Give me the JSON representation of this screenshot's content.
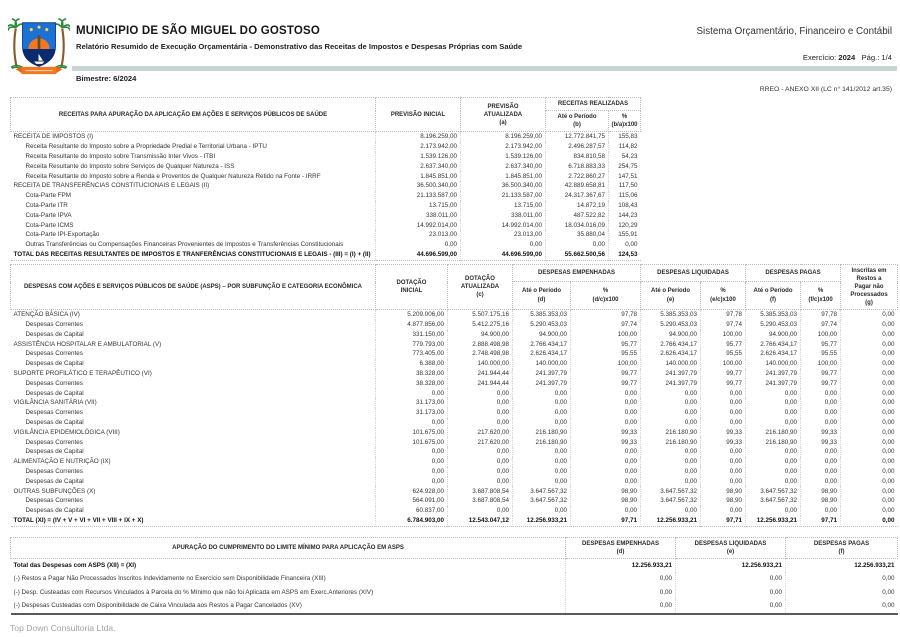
{
  "header": {
    "municipality": "MUNICIPIO DE SÃO MIGUEL DO GOSTOSO",
    "report_title": "Relatório Resumido de Execução Orçamentária - Demonstrativo das Receitas de Impostos e Despesas Próprias com Saúde",
    "system_name": "Sistema Orçamentário, Financeiro e Contábil",
    "exercise_label": "Exercício:",
    "exercise_value": "2024",
    "page_label": "Pág.: 1/4",
    "bimester": "Bimestre: 6/2024",
    "annex_reference": "RREO - ANEXO XII (LC n° 141/2012 art.35)"
  },
  "colors": {
    "divider_bar": "#c6d4d4",
    "shield_blue": "#1b72d3",
    "sea_navy": "#0c2a6e",
    "sun_orange": "#f07820",
    "palm_green": "#2e8b3a",
    "footer_text": "#a3a3a3"
  },
  "receitas_table": {
    "headers": {
      "desc": "RECEITAS PARA APURAÇÃO DA APLICAÇÃO EM AÇÕES E SERVIÇOS PÚBLICOS DE SAÚDE",
      "previsao_inicial": "PREVISÃO INICIAL",
      "previsao_atualizada": "PREVISÃO\nATUALIZADA\n(a)",
      "group_realizadas": "RECEITAS REALIZADAS",
      "ate_periodo": "Até o Período\n(b)",
      "pct": "%\n(b/a)x100"
    },
    "rows": [
      {
        "label": "RECEITA DE IMPOSTOS (I)",
        "style": "section",
        "values": [
          "8.196.259,00",
          "8.196.259,00",
          "12.772.841,75",
          "155,83"
        ]
      },
      {
        "label": "Receita Resultante do Imposto sobre a Propriedade Predial e Territorial Urbana - IPTU",
        "style": "sub",
        "values": [
          "2.173.942,00",
          "2.173.942,00",
          "2.496.287,57",
          "114,82"
        ]
      },
      {
        "label": "Receita Resultante do Imposto sobre Transmissão Inter Vivos - ITBI",
        "style": "sub",
        "values": [
          "1.539.126,00",
          "1.539.126,00",
          "834.810,58",
          "54,23"
        ]
      },
      {
        "label": "Receita Resultante do Imposto sobre Serviços de Qualquer Natureza - ISS",
        "style": "sub",
        "values": [
          "2.637.340,00",
          "2.637.340,00",
          "6.718.883,33",
          "254,75"
        ]
      },
      {
        "label": "Receita Resultante do Imposto sobre a Renda e Proventos de Qualquer Natureza Retido na Fonte - IRRF",
        "style": "sub",
        "values": [
          "1.845.851,00",
          "1.845.851,00",
          "2.722.860,27",
          "147,51"
        ]
      },
      {
        "label": "RECEITA DE TRANSFERÊNCIAS CONSTITUCIONAIS E LEGAIS (II)",
        "style": "section",
        "values": [
          "36.500.340,00",
          "36.500.340,00",
          "42.889.658,81",
          "117,50"
        ]
      },
      {
        "label": "Cota-Parte FPM",
        "style": "sub",
        "values": [
          "21.133.587,00",
          "21.133.587,00",
          "24.317.367,67",
          "115,06"
        ]
      },
      {
        "label": "Cota-Parte ITR",
        "style": "sub",
        "values": [
          "13.715,00",
          "13.715,00",
          "14.872,19",
          "108,43"
        ]
      },
      {
        "label": "Cota-Parte IPVA",
        "style": "sub",
        "values": [
          "338.011,00",
          "338.011,00",
          "487.522,82",
          "144,23"
        ]
      },
      {
        "label": "Cota-Parte ICMS",
        "style": "sub",
        "values": [
          "14.992.014,00",
          "14.992.014,00",
          "18.034.016,09",
          "120,29"
        ]
      },
      {
        "label": "Cota-Parte IPI-Exportação",
        "style": "sub",
        "values": [
          "23.013,00",
          "23.013,00",
          "35.880,04",
          "155,91"
        ]
      },
      {
        "label": "Outras Transferências ou Compensações Financeiras Provenientes de Impostos e Transferências Constitucionais",
        "style": "sub",
        "values": [
          "0,00",
          "0,00",
          "0,00",
          "0,00"
        ]
      },
      {
        "label": "TOTAL DAS RECEITAS RESULTANTES DE IMPOSTOS E TRANFERÊNCIAS CONSTITUCIONAIS E LEGAIS - (III) = (I) + (II)",
        "style": "total",
        "values": [
          "44.696.599,00",
          "44.696.599,00",
          "55.662.500,56",
          "124,53"
        ]
      }
    ]
  },
  "despesas_table": {
    "headers": {
      "desc": "DESPESAS COM AÇÕES E SERVIÇOS PÚBLICOS DE SAÚDE (ASPS) – POR SUBFUNÇÃO E CATEGORIA ECONÔMICA",
      "dotacao_inicial": "DOTAÇÃO\nINICIAL",
      "dotacao_atualizada": "DOTAÇÃO\nATUALIZADA\n(c)",
      "group_empenhadas": "DESPESAS EMPENHADAS",
      "empenhadas_ate": "Até o Período\n(d)",
      "empenhadas_pct": "%\n(d/c)x100",
      "group_liquidadas": "DESPESAS LIQUIDADAS",
      "liquidadas_ate": "Até o Período\n(e)",
      "liquidadas_pct": "%\n(e/c)x100",
      "group_pagas": "DESPESAS PAGAS",
      "pagas_ate": "Até o Período\n(f)",
      "pagas_pct": "%\n(f/c)x100",
      "restos": "Inscritas em Restos a\nPagar não Processados\n(g)"
    },
    "rows": [
      {
        "label": "ATENÇÃO BÁSICA (IV)",
        "style": "section",
        "values": [
          "5.209.006,00",
          "5.507.175,16",
          "5.385.353,03",
          "97,78",
          "5.385.353,03",
          "97,78",
          "5.385.353,03",
          "97,78",
          "0,00"
        ]
      },
      {
        "label": "Despesas Correntes",
        "style": "sub",
        "values": [
          "4.877.856,00",
          "5.412.275,16",
          "5.290.453,03",
          "97,74",
          "5.290.453,03",
          "97,74",
          "5.290.453,03",
          "97,74",
          "0,00"
        ]
      },
      {
        "label": "Despesas de Capital",
        "style": "sub",
        "values": [
          "331.150,00",
          "94.900,00",
          "94.900,00",
          "100,00",
          "94.900,00",
          "100,00",
          "94.900,00",
          "100,00",
          "0,00"
        ]
      },
      {
        "label": "ASSISTÊNCIA HOSPITALAR E AMBULATORIAL (V)",
        "style": "section",
        "values": [
          "779.793,00",
          "2.888.498,98",
          "2.766.434,17",
          "95,77",
          "2.766.434,17",
          "95,77",
          "2.766.434,17",
          "95,77",
          "0,00"
        ]
      },
      {
        "label": "Despesas Correntes",
        "style": "sub",
        "values": [
          "773.405,00",
          "2.748.498,98",
          "2.626.434,17",
          "95,55",
          "2.626.434,17",
          "95,55",
          "2.626.434,17",
          "95,55",
          "0,00"
        ]
      },
      {
        "label": "Despesas de Capital",
        "style": "sub",
        "values": [
          "6.388,00",
          "140.000,00",
          "140.000,00",
          "100,00",
          "140.000,00",
          "100,00",
          "140.000,00",
          "100,00",
          "0,00"
        ]
      },
      {
        "label": "SUPORTE PROFILÁTICO E TERAPÊUTICO (VI)",
        "style": "section",
        "values": [
          "38.328,00",
          "241.944,44",
          "241.397,79",
          "99,77",
          "241.397,79",
          "99,77",
          "241.397,79",
          "99,77",
          "0,00"
        ]
      },
      {
        "label": "Despesas Correntes",
        "style": "sub",
        "values": [
          "38.328,00",
          "241.944,44",
          "241.397,79",
          "99,77",
          "241.397,79",
          "99,77",
          "241.397,79",
          "99,77",
          "0,00"
        ]
      },
      {
        "label": "Despesas de Capital",
        "style": "sub",
        "values": [
          "0,00",
          "0,00",
          "0,00",
          "0,00",
          "0,00",
          "0,00",
          "0,00",
          "0,00",
          "0,00"
        ]
      },
      {
        "label": "VIGILÂNCIA SANITÁRIA (VII)",
        "style": "section",
        "values": [
          "31.173,00",
          "0,00",
          "0,00",
          "0,00",
          "0,00",
          "0,00",
          "0,00",
          "0,00",
          "0,00"
        ]
      },
      {
        "label": "Despesas Correntes",
        "style": "sub",
        "values": [
          "31.173,00",
          "0,00",
          "0,00",
          "0,00",
          "0,00",
          "0,00",
          "0,00",
          "0,00",
          "0,00"
        ]
      },
      {
        "label": "Despesas de Capital",
        "style": "sub",
        "values": [
          "0,00",
          "0,00",
          "0,00",
          "0,00",
          "0,00",
          "0,00",
          "0,00",
          "0,00",
          "0,00"
        ]
      },
      {
        "label": "VIGILÂNCIA EPIDEMIOLÓGICA (VIII)",
        "style": "section",
        "values": [
          "101.675,00",
          "217.620,00",
          "216.180,90",
          "99,33",
          "216.180,90",
          "99,33",
          "216.180,90",
          "99,33",
          "0,00"
        ]
      },
      {
        "label": "Despesas Correntes",
        "style": "sub",
        "values": [
          "101.675,00",
          "217.620,00",
          "216.180,90",
          "99,33",
          "216.180,90",
          "99,33",
          "216.180,90",
          "99,33",
          "0,00"
        ]
      },
      {
        "label": "Despesas de Capital",
        "style": "sub",
        "values": [
          "0,00",
          "0,00",
          "0,00",
          "0,00",
          "0,00",
          "0,00",
          "0,00",
          "0,00",
          "0,00"
        ]
      },
      {
        "label": "ALIMENTAÇÃO E NUTRIÇÃO (IX)",
        "style": "section",
        "values": [
          "0,00",
          "0,00",
          "0,00",
          "0,00",
          "0,00",
          "0,00",
          "0,00",
          "0,00",
          "0,00"
        ]
      },
      {
        "label": "Despesas Correntes",
        "style": "sub",
        "values": [
          "0,00",
          "0,00",
          "0,00",
          "0,00",
          "0,00",
          "0,00",
          "0,00",
          "0,00",
          "0,00"
        ]
      },
      {
        "label": "Despesas de Capital",
        "style": "sub",
        "values": [
          "0,00",
          "0,00",
          "0,00",
          "0,00",
          "0,00",
          "0,00",
          "0,00",
          "0,00",
          "0,00"
        ]
      },
      {
        "label": "OUTRAS SUBFUNÇÕES (X)",
        "style": "section",
        "values": [
          "624.928,00",
          "3.687.808,54",
          "3.647.567,32",
          "98,90",
          "3.647.567,32",
          "98,90",
          "3.647.567,32",
          "98,90",
          "0,00"
        ]
      },
      {
        "label": "Despesas Correntes",
        "style": "sub",
        "values": [
          "564.091,00",
          "3.687.808,54",
          "3.647.567,32",
          "98,90",
          "3.647.567,32",
          "98,90",
          "3.647.567,32",
          "98,90",
          "0,00"
        ]
      },
      {
        "label": "Despesas de Capital",
        "style": "sub",
        "values": [
          "60.837,00",
          "0,00",
          "0,00",
          "0,00",
          "0,00",
          "0,00",
          "0,00",
          "0,00",
          "0,00"
        ]
      },
      {
        "label": "TOTAL (XI) = (IV + V + VI + VII + VIII + IX + X)",
        "style": "total",
        "values": [
          "6.784.903,00",
          "12.543.047,12",
          "12.256.933,21",
          "97,71",
          "12.256.933,21",
          "97,71",
          "12.256.933,21",
          "97,71",
          "0,00"
        ]
      }
    ]
  },
  "apuracao_table": {
    "headers": {
      "desc": "APURAÇÃO DO CUMPRIMENTO DO LIMITE MÍNIMO PARA APLICAÇÃO EM ASPS",
      "empenhadas": "DESPESAS EMPENHADAS\n(d)",
      "liquidadas": "DESPESAS LIQUIDADAS\n(e)",
      "pagas": "DESPESAS PAGAS\n(f)"
    },
    "rows": [
      {
        "label": "Total das Despesas com ASPS (XII) = (XI)",
        "style": "total",
        "values": [
          "12.256.933,21",
          "12.256.933,21",
          "12.256.933,21"
        ]
      },
      {
        "label": "(-) Restos a Pagar Não Processados Inscritos Indevidamente no Exercício sem Disponibilidade Financeira (XIII)",
        "style": "section",
        "values": [
          "0,00",
          "0,00",
          "0,00"
        ]
      },
      {
        "label": "(-) Desp. Custeadas com Recursos Vinculados à Parcela do % Mínimo que não foi Aplicada em ASPS em Exerc.Anteriores (XIV)",
        "style": "section",
        "values": [
          "0,00",
          "0,00",
          "0,00"
        ]
      },
      {
        "label": "(-) Despesas Custeadas com Disponibilidade de Caixa Vinculada aos Restos a Pagar Cancelados (XV)",
        "style": "section",
        "values": [
          "0,00",
          "0,00",
          "0,00"
        ]
      }
    ]
  },
  "footer": {
    "company": "Top Down Consultoria Ltda."
  }
}
